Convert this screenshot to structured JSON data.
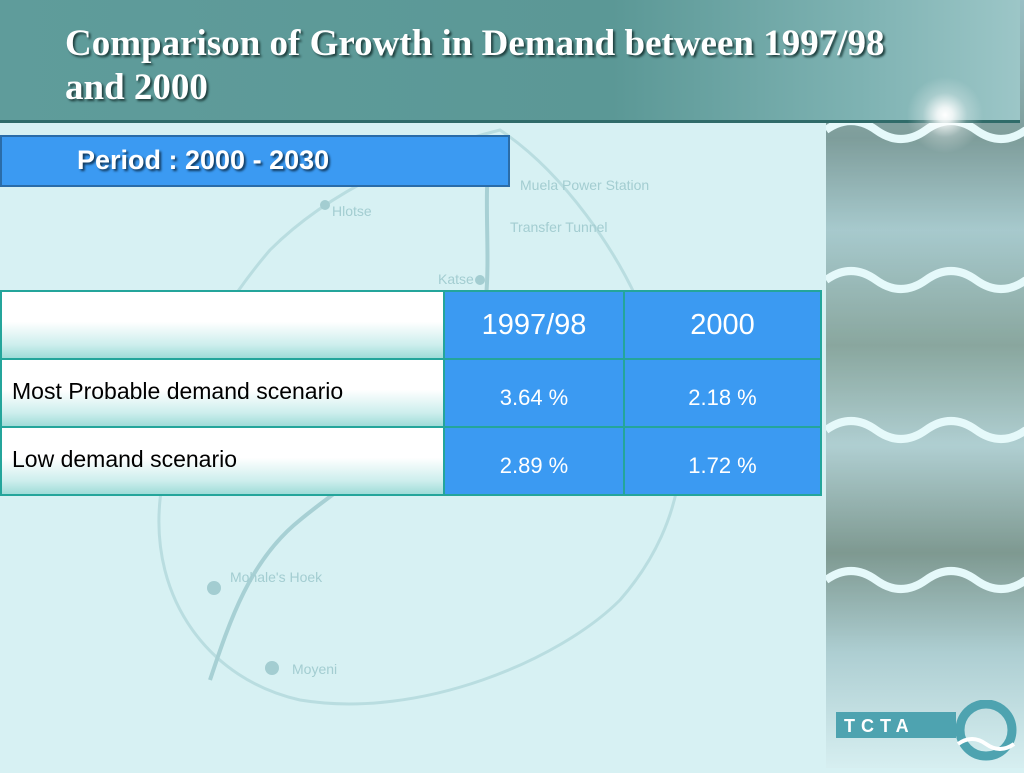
{
  "slide": {
    "title": "Comparison of Growth in Demand between 1997/98 and 2000",
    "period": "Period : 2000 - 2030"
  },
  "map_labels": {
    "power_station": "Muela Power Station",
    "transfer_tunnel": "Transfer Tunnel",
    "htse": "Hlotse",
    "katse": "Katse",
    "mohales_hoek": "Mohale's Hoek",
    "moyeni": "Moyeni"
  },
  "table": {
    "columns": [
      "1997/98",
      "2000"
    ],
    "rows": [
      {
        "label": "Most Probable demand scenario",
        "values": [
          "3.64 %",
          "2.18 %"
        ]
      },
      {
        "label": "Low demand scenario",
        "values": [
          "2.89 %",
          "1.72 %"
        ]
      }
    ]
  },
  "logo": {
    "text": "TCTA"
  },
  "colors": {
    "title_band": "#5f9c9b",
    "cell_blue": "#3b9af2",
    "cell_border": "#24a59b",
    "background": "#d7f1f3"
  }
}
